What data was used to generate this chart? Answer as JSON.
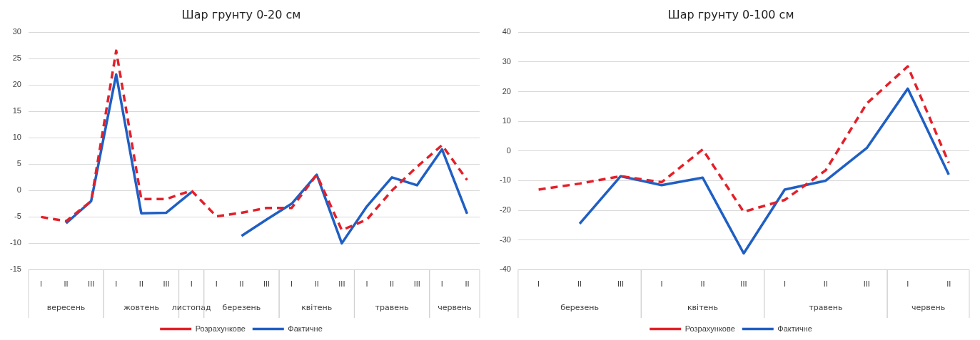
{
  "chart_data": [
    {
      "type": "line",
      "title": "Шар грунту 0-20 см",
      "categories": [
        "I",
        "II",
        "III",
        "I",
        "II",
        "III",
        "I",
        "I",
        "II",
        "III",
        "I",
        "II",
        "III",
        "I",
        "II",
        "III",
        "I",
        "II"
      ],
      "annotations": [
        "вересень",
        "жовтень",
        "листопад",
        "березень",
        "квітень",
        "травень",
        "червень"
      ],
      "series": [
        {
          "name": "Розрахункове",
          "color": "#e3202a",
          "line_style": "dashed",
          "values": [
            -5,
            -5.8,
            -2,
            26.5,
            -1.6,
            -1.6,
            0,
            -4.9,
            -4.2,
            -3.3,
            -3.3,
            3,
            -7.5,
            -5.5,
            0,
            4.5,
            8.6,
            2
          ]
        },
        {
          "name": "Фактичне",
          "color": "#1f5fc4",
          "line_style": "solid",
          "values": [
            null,
            -6.2,
            -2,
            22,
            -4.3,
            -4.2,
            -0.3,
            null,
            -8.6,
            -5.5,
            -2.5,
            3,
            -10,
            -3,
            2.5,
            1,
            7.8,
            -4.4
          ]
        }
      ],
      "ylim": [
        -15,
        30
      ],
      "yticks": [
        -15,
        -10,
        -5,
        0,
        5,
        10,
        15,
        20,
        25,
        30
      ],
      "grid": "y",
      "legend": "bottom",
      "marker": "none"
    },
    {
      "type": "line",
      "title": "Шар грунту 0-100 см",
      "categories": [
        "I",
        "II",
        "III",
        "I",
        "II",
        "III",
        "I",
        "II",
        "III",
        "I",
        "II"
      ],
      "annotations": [
        "березень",
        "квітень",
        "травень",
        "червень"
      ],
      "series": [
        {
          "name": "Розрахункове",
          "color": "#e3202a",
          "line_style": "dashed",
          "values": [
            -13,
            -11,
            -8.5,
            -10.5,
            0.5,
            -20.5,
            -16.5,
            -6.5,
            16,
            28.5,
            -4
          ]
        },
        {
          "name": "Фактичне",
          "color": "#1f5fc4",
          "line_style": "solid",
          "values": [
            null,
            -24.5,
            -8.5,
            -11.5,
            -9,
            -34.5,
            -13,
            -10,
            1,
            21,
            -8
          ]
        }
      ],
      "ylim": [
        -40,
        40
      ],
      "yticks": [
        -40,
        -30,
        -20,
        -10,
        0,
        10,
        20,
        30,
        40
      ],
      "grid": "y",
      "legend": "bottom",
      "marker": "none"
    }
  ]
}
